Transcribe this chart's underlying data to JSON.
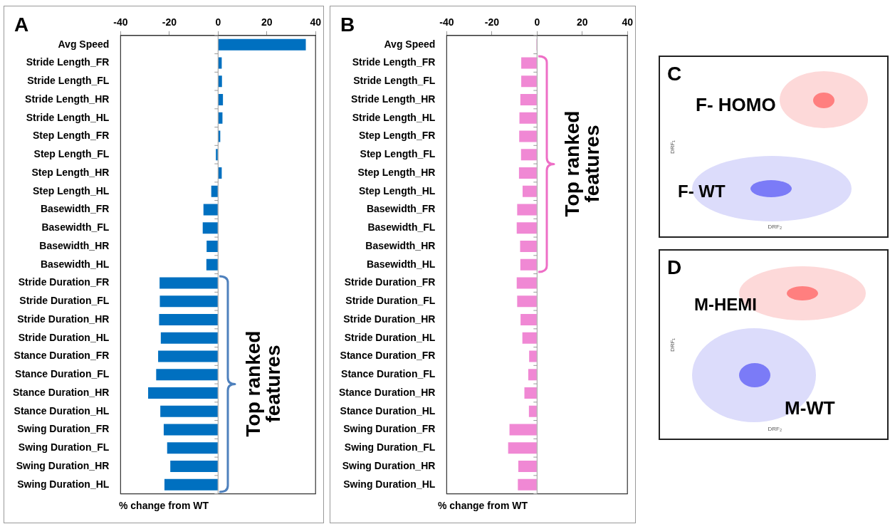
{
  "chart_data": [
    {
      "type": "bar",
      "title": "A",
      "orientation": "horizontal",
      "xlabel": "% change from WT",
      "categories": [
        "Avg Speed",
        "Stride Length_FR",
        "Stride Length_FL",
        "Stride Length_HR",
        "Stride Length_HL",
        "Step Length_FR",
        "Step Length_FL",
        "Step Length_HR",
        "Step Length_HL",
        "Basewidth_FR",
        "Basewidth_FL",
        "Basewidth_HR",
        "Basewidth_HL",
        "Stride Duration_FR",
        "Stride Duration_FL",
        "Stride Duration_HR",
        "Stride Duration_HL",
        "Stance Duration_FR",
        "Stance Duration_FL",
        "Stance Duration_HR",
        "Stance Duration_HL",
        "Swing Duration_FR",
        "Swing Duration_FL",
        "Swing Duration_HR",
        "Swing Duration_HL"
      ],
      "values": [
        36,
        1.5,
        1.6,
        2,
        1.8,
        0.9,
        -0.9,
        1.5,
        -2.8,
        -6,
        -6.3,
        -4.7,
        -4.8,
        -24,
        -23.9,
        -24.2,
        -23.5,
        -24.6,
        -25.4,
        -28.7,
        -23.7,
        -22.3,
        -20.9,
        -19.6,
        -22
      ],
      "color": "#0070c0",
      "xlim": [
        -40,
        40
      ],
      "xticks": [
        -40,
        -20,
        0,
        20,
        40
      ],
      "grid": false,
      "legend": false,
      "ref_lines": [
        {
          "axis": "x",
          "value": 0,
          "color": "#999999"
        }
      ],
      "annotations": [
        "Top ranked features"
      ]
    },
    {
      "type": "bar",
      "title": "B",
      "orientation": "horizontal",
      "xlabel": "% change from WT",
      "categories": [
        "Avg Speed",
        "Stride Length_FR",
        "Stride Length_FL",
        "Stride Length_HR",
        "Stride Length_HL",
        "Step Length_FR",
        "Step Length_FL",
        "Step Length_HR",
        "Step Length_HL",
        "Basewidth_FR",
        "Basewidth_FL",
        "Basewidth_HR",
        "Basewidth_HL",
        "Stride Duration_FR",
        "Stride Duration_FL",
        "Stride Duration_HR",
        "Stride Duration_HL",
        "Stance Duration_FR",
        "Stance Duration_FL",
        "Stance Duration_HR",
        "Stance Duration_HL",
        "Swing Duration_FR",
        "Swing Duration_FL",
        "Swing Duration_HR",
        "Swing Duration_HL"
      ],
      "values": [
        -0.3,
        -7,
        -7,
        -7.4,
        -7.8,
        -7.9,
        -7.1,
        -8,
        -6.4,
        -8.8,
        -9,
        -7.5,
        -7.4,
        -9,
        -8.8,
        -7.3,
        -6.5,
        -3.5,
        -3.9,
        -5.6,
        -3.6,
        -12.2,
        -12.8,
        -8.3,
        -8.5
      ],
      "color": "#f088d4",
      "xlim": [
        -40,
        40
      ],
      "xticks": [
        -40,
        -20,
        0,
        20,
        40
      ],
      "grid": false,
      "legend": false,
      "ref_lines": [
        {
          "axis": "x",
          "value": 0,
          "color": "#999999"
        }
      ],
      "annotations": [
        "Top ranked features"
      ]
    },
    {
      "type": "other",
      "title": "C",
      "xlabel": "DRF₂",
      "ylabel": "DRF₁",
      "annotations": [
        "F- HOMO",
        "F- WT"
      ]
    },
    {
      "type": "other",
      "title": "D",
      "xlabel": "DRF₂",
      "ylabel": "DRF₁",
      "annotations": [
        "M-HEMI",
        "M-WT"
      ]
    }
  ]
}
